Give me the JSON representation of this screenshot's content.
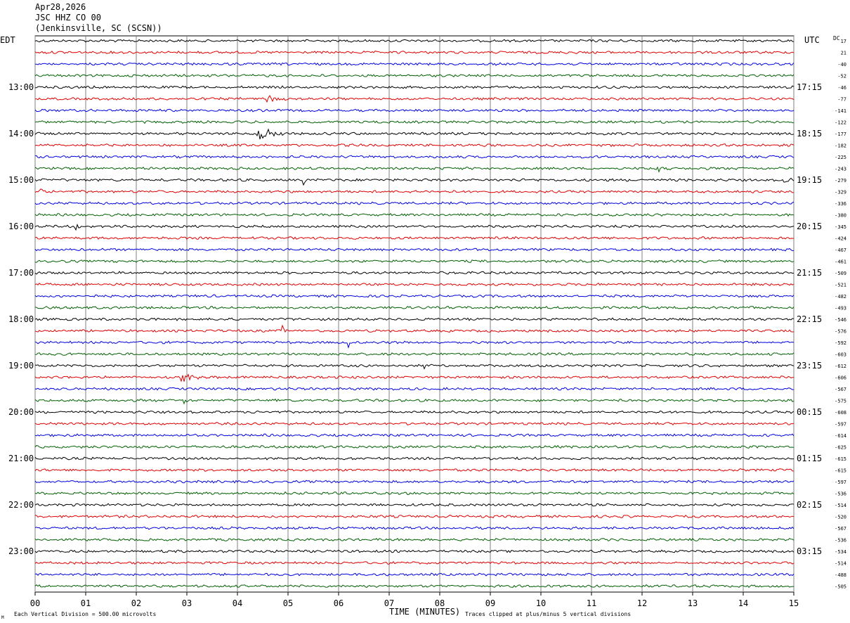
{
  "header": {
    "date": "Apr28,2026",
    "station": "JSC HHZ CO 00",
    "location": "(Jenkinsville, SC (SCSN))"
  },
  "labels": {
    "left_tz": "EDT",
    "right_tz": "UTC",
    "dc": "DC",
    "x_axis_title": "TIME (MINUTES)",
    "scale_note": "Each Vertical Division =  500.00 microvolts",
    "clip_note": "Traces clipped at plus/minus 5 vertical divisions",
    "corner_mark": "M"
  },
  "colors": {
    "trace_cycle": [
      "#000000",
      "#e00000",
      "#0000e0",
      "#006000"
    ],
    "grid": "#808080",
    "background": "#ffffff"
  },
  "chart_data": {
    "type": "line",
    "description_of_series": "48 helicorder traces, 15 minutes each, cycling black/red/blue/green",
    "x_ticks": [
      "00",
      "01",
      "02",
      "03",
      "04",
      "05",
      "06",
      "07",
      "08",
      "09",
      "10",
      "11",
      "12",
      "13",
      "14",
      "15"
    ],
    "x_range": [
      0,
      15
    ],
    "left_hour_labels": [
      "13:00",
      "14:00",
      "15:00",
      "16:00",
      "17:00",
      "18:00",
      "19:00",
      "20:00",
      "21:00",
      "22:00",
      "23:00"
    ],
    "right_hour_labels": [
      "17:15",
      "18:15",
      "19:15",
      "20:15",
      "21:15",
      "22:15",
      "23:15",
      "00:15",
      "01:15",
      "02:15",
      "03:15"
    ],
    "dc_offsets": [
      "17",
      "21",
      "-40",
      "-52",
      "-46",
      "-77",
      "-141",
      "-122",
      "-177",
      "-182",
      "-225",
      "-243",
      "-279",
      "-329",
      "-336",
      "-380",
      "-345",
      "-424",
      "-467",
      "-461",
      "-509",
      "-521",
      "-482",
      "-493",
      "-546",
      "-576",
      "-592",
      "-603",
      "-612",
      "-606",
      "-567",
      "-575",
      "-608",
      "-597",
      "-614",
      "-625",
      "-615",
      "-615",
      "-597",
      "-536",
      "-514",
      "-520",
      "-567",
      "-536",
      "-534",
      "-514",
      "-488",
      "-505"
    ],
    "events": [
      {
        "row": 5,
        "minute": 4.6,
        "amp": 6,
        "dur": 0.35
      },
      {
        "row": 8,
        "minute": 4.35,
        "amp": 14,
        "dur": 0.6
      },
      {
        "row": 11,
        "minute": 12.25,
        "amp": 5,
        "dur": 0.5
      },
      {
        "row": 12,
        "minute": 5.3,
        "amp": 16,
        "dur": 0.04
      },
      {
        "row": 12,
        "minute": 14.8,
        "amp": 6,
        "dur": 0.25
      },
      {
        "row": 13,
        "minute": 0.1,
        "amp": 5,
        "dur": 0.3
      },
      {
        "row": 16,
        "minute": 0.8,
        "amp": 5,
        "dur": 0.3
      },
      {
        "row": 25,
        "minute": 4.9,
        "amp": 9,
        "dur": 0.04
      },
      {
        "row": 26,
        "minute": 6.2,
        "amp": 9,
        "dur": 0.04
      },
      {
        "row": 28,
        "minute": 7.7,
        "amp": 6,
        "dur": 0.04
      },
      {
        "row": 29,
        "minute": 2.9,
        "amp": 8,
        "dur": 0.4
      },
      {
        "row": 31,
        "minute": 2.95,
        "amp": 10,
        "dur": 0.05
      },
      {
        "row": 31,
        "minute": 4.7,
        "amp": 6,
        "dur": 0.05
      },
      {
        "row": 31,
        "minute": 12.8,
        "amp": 5,
        "dur": 0.05
      }
    ]
  }
}
